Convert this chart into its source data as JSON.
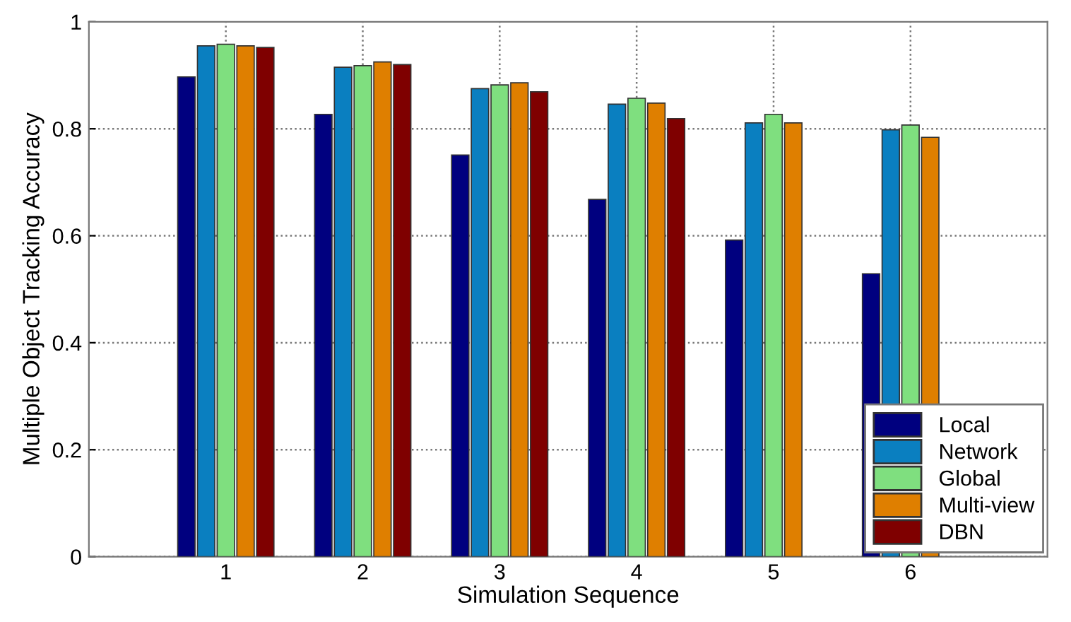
{
  "chart_data": {
    "type": "bar",
    "xlabel": "Simulation Sequence",
    "ylabel": "Multiple Object Tracking Accuracy",
    "categories": [
      "1",
      "2",
      "3",
      "4",
      "5",
      "6"
    ],
    "series": [
      {
        "name": "Local",
        "color": "#00007f",
        "values": [
          0.897,
          0.827,
          0.751,
          0.668,
          0.592,
          0.529
        ]
      },
      {
        "name": "Network",
        "color": "#0a7fc0",
        "values": [
          0.955,
          0.915,
          0.875,
          0.846,
          0.811,
          0.798
        ]
      },
      {
        "name": "Global",
        "color": "#7fdf7f",
        "values": [
          0.958,
          0.918,
          0.882,
          0.857,
          0.827,
          0.807
        ]
      },
      {
        "name": "Multi-view",
        "color": "#df7f00",
        "values": [
          0.955,
          0.925,
          0.886,
          0.848,
          0.811,
          0.784
        ]
      },
      {
        "name": "DBN",
        "color": "#7f0000",
        "values": [
          0.952,
          0.92,
          0.869,
          0.819,
          null,
          null
        ]
      }
    ],
    "ylim": [
      0,
      1
    ],
    "yticks": [
      0,
      0.2,
      0.4,
      0.6,
      0.8,
      1
    ],
    "grid": true,
    "legend": "bottom right"
  }
}
